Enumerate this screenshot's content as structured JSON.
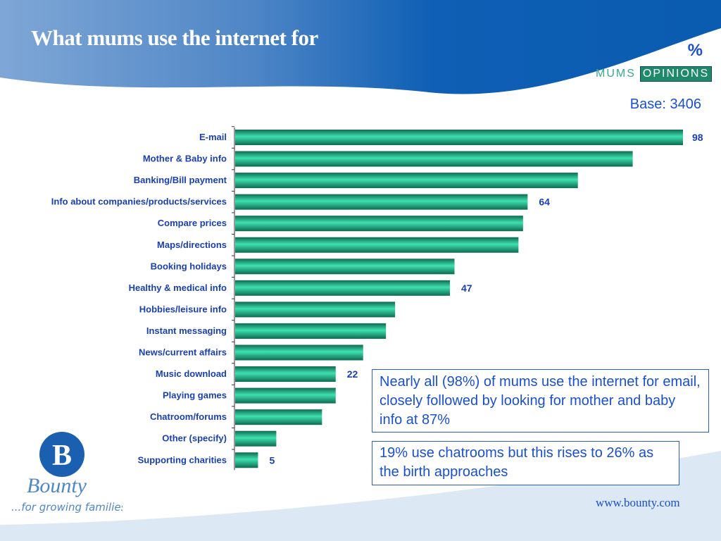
{
  "header": {
    "title": "What mums use the internet for",
    "unit": "%",
    "brand_left": "MUMS",
    "brand_right": "OPINIONS",
    "base": "Base: 3406"
  },
  "chart_data": {
    "type": "bar",
    "orientation": "horizontal",
    "title": "What mums use the internet for",
    "unit": "%",
    "categories": [
      "E-mail",
      "Mother & Baby info",
      "Banking/Bill payment",
      "Info about companies/products/services",
      "Compare prices",
      "Maps/directions",
      "Booking holidays",
      "Healthy & medical info",
      "Hobbies/leisure info",
      "Instant messaging",
      "News/current affairs",
      "Music download",
      "Playing games",
      "Chatroom/forums",
      "Other (specify)",
      "Supporting charities"
    ],
    "values": [
      98,
      87,
      75,
      64,
      63,
      62,
      48,
      47,
      35,
      33,
      28,
      22,
      22,
      19,
      9,
      5
    ],
    "labeled": {
      "0": "98",
      "3": "64",
      "7": "47",
      "11": "22",
      "15": "5"
    },
    "xlim": [
      0,
      98
    ],
    "bar_color": "#1fa77e"
  },
  "callouts": [
    "Nearly all (98%) of mums use the internet for email, closely followed by looking for mother and baby info at 87%",
    "19% use chatrooms but this rises to 26% as the birth approaches"
  ],
  "footer": {
    "brand": "Bounty",
    "tagline": "...for growing families!",
    "url": "www.bounty.com"
  }
}
